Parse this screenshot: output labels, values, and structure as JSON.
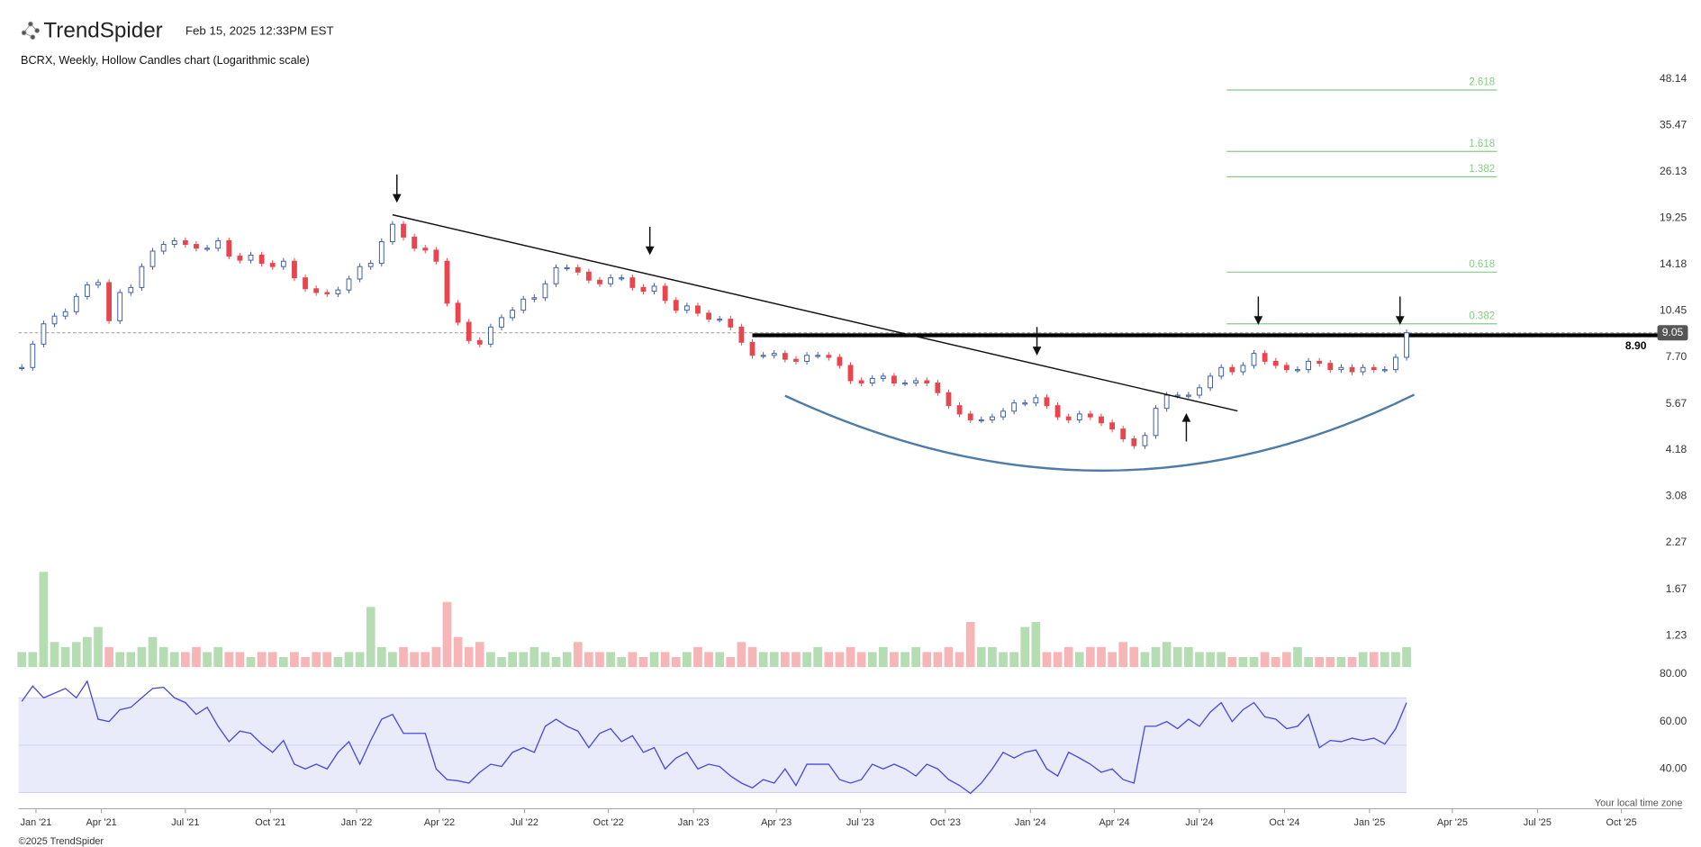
{
  "header": {
    "brand": "TrendSpider",
    "timestamp": "Feb 15, 2025 12:33PM EST"
  },
  "footer": {
    "copyright": "©2025 TrendSpider",
    "timezone_note": "Your local time zone"
  },
  "chart_data": {
    "type": "candlestick",
    "title": "BCRX, Weekly, Hollow Candles chart (Logarithmic scale)",
    "log_scale": true,
    "x": [
      0,
      1,
      2,
      3,
      4,
      5,
      6,
      7,
      8,
      9,
      10,
      11,
      12,
      13,
      14,
      15,
      16,
      17,
      18,
      19,
      20,
      21,
      22,
      23,
      24,
      25,
      26,
      27,
      28,
      29,
      30,
      31,
      32,
      33,
      34,
      35,
      36,
      37,
      38,
      39,
      40,
      41,
      42,
      43,
      44,
      45,
      46,
      47,
      48,
      49,
      50,
      51,
      52,
      53,
      54,
      55,
      56,
      57,
      58,
      59,
      60,
      61,
      62,
      63,
      64,
      65,
      66,
      67,
      68,
      69,
      70,
      71,
      72,
      73,
      74,
      75,
      76,
      77,
      78,
      79,
      80,
      81,
      82,
      83,
      84,
      85,
      86,
      87,
      88,
      89,
      90,
      91,
      92,
      93,
      94,
      95,
      96,
      97,
      98,
      99,
      100,
      101,
      102,
      103,
      104,
      105,
      106,
      107,
      108,
      109,
      110,
      111,
      112,
      113,
      114,
      115,
      116,
      117,
      118,
      119,
      120,
      121,
      122,
      123,
      124,
      125,
      126,
      127
    ],
    "xlim": [
      -0.3,
      152.3
    ],
    "xticks": [
      {
        "value": 1.3,
        "label": "Jan '21"
      },
      {
        "value": 7.3,
        "label": "Apr '21"
      },
      {
        "value": 15,
        "label": "Jul '21"
      },
      {
        "value": 22.8,
        "label": "Oct '21"
      },
      {
        "value": 30.7,
        "label": "Jan '22"
      },
      {
        "value": 38.3,
        "label": "Apr '22"
      },
      {
        "value": 46.1,
        "label": "Jul '22"
      },
      {
        "value": 53.8,
        "label": "Oct '22"
      },
      {
        "value": 61.6,
        "label": "Jan '23"
      },
      {
        "value": 69.2,
        "label": "Apr '23"
      },
      {
        "value": 76.9,
        "label": "Jul '23"
      },
      {
        "value": 84.7,
        "label": "Oct '23"
      },
      {
        "value": 92.5,
        "label": "Jan '24"
      },
      {
        "value": 100.2,
        "label": "Apr '24"
      },
      {
        "value": 108,
        "label": "Jul '24"
      },
      {
        "value": 115.8,
        "label": "Oct '24"
      },
      {
        "value": 123.6,
        "label": "Jan '25"
      },
      {
        "value": 131.2,
        "label": "Apr '25"
      },
      {
        "value": 139,
        "label": "Jul '25"
      },
      {
        "value": 146.7,
        "label": "Oct '25"
      }
    ],
    "price": {
      "ylim": [
        1.0,
        55
      ],
      "yticks": [
        48.14,
        35.47,
        26.13,
        19.25,
        14.18,
        10.45,
        {
          "value": 7.7,
          "label": "7.70"
        },
        5.67,
        4.18,
        3.08,
        2.27,
        1.67,
        1.23
      ],
      "up_color": "#3b5ba8",
      "down_color": "#e8464e",
      "values": [
        7.2,
        8.4,
        9.6,
        10.1,
        10.4,
        11.5,
        12.4,
        12.6,
        9.8,
        11.8,
        12.2,
        14.0,
        15.5,
        16.2,
        16.6,
        16.2,
        15.8,
        15.8,
        16.6,
        15.0,
        14.6,
        15.1,
        14.3,
        14.0,
        14.5,
        13.0,
        12.1,
        11.8,
        11.7,
        12.0,
        12.9,
        14.0,
        14.3,
        16.5,
        18.5,
        17.0,
        15.8,
        15.6,
        14.5,
        11.0,
        9.7,
        8.6,
        8.4,
        9.4,
        10.0,
        10.5,
        11.3,
        11.4,
        12.5,
        13.9,
        13.9,
        13.5,
        12.8,
        12.5,
        13.0,
        13.0,
        12.2,
        11.9,
        12.3,
        11.2,
        10.5,
        10.8,
        10.3,
        9.9,
        9.9,
        9.4,
        8.5,
        7.8,
        7.8,
        7.9,
        7.6,
        7.5,
        7.8,
        7.8,
        7.7,
        7.3,
        6.6,
        6.5,
        6.7,
        6.8,
        6.5,
        6.5,
        6.6,
        6.5,
        6.1,
        5.6,
        5.3,
        5.1,
        5.1,
        5.2,
        5.4,
        5.7,
        5.7,
        5.9,
        5.6,
        5.2,
        5.1,
        5.3,
        5.2,
        5.0,
        4.8,
        4.5,
        4.3,
        4.6,
        5.5,
        6.0,
        6.0,
        6.0,
        6.3,
        6.8,
        7.2,
        7.0,
        7.3,
        7.9,
        7.5,
        7.3,
        7.1,
        7.1,
        7.5,
        7.4,
        7.1,
        7.2,
        7.0,
        7.2,
        7.1,
        7.1,
        7.7,
        9.05
      ]
    },
    "resistance": {
      "value": 8.9,
      "label": "8.90"
    },
    "fib": [
      {
        "ratio": 2.618,
        "price": 44.8
      },
      {
        "ratio": 1.618,
        "price": 29.9
      },
      {
        "ratio": 1.382,
        "price": 25.3
      },
      {
        "ratio": 0.618,
        "price": 13.5
      },
      {
        "ratio": 0.382,
        "price": 9.6
      }
    ],
    "fib_color": "#86cc86",
    "volume": {
      "ylim": [
        0,
        20
      ],
      "up_color": "#b5dcb3",
      "down_color": "#f6b6b8",
      "values": [
        3,
        3,
        19,
        5,
        4,
        5,
        6,
        8,
        4,
        3,
        3,
        4,
        6,
        4,
        3,
        3,
        4,
        3,
        4,
        3,
        3,
        2,
        3,
        3,
        2,
        3,
        2,
        3,
        3,
        2,
        3,
        3,
        12,
        4,
        3,
        4,
        3,
        3,
        4,
        13,
        6,
        4,
        5,
        3,
        2,
        3,
        3,
        4,
        3,
        2,
        3,
        5,
        3,
        3,
        3,
        2,
        3,
        2,
        3,
        3,
        2,
        3,
        4,
        3,
        3,
        2,
        5,
        4,
        3,
        3,
        3,
        3,
        3,
        4,
        3,
        3,
        4,
        3,
        3,
        4,
        3,
        3,
        4,
        3,
        3,
        4,
        3,
        9,
        4,
        4,
        3,
        3,
        8,
        9,
        3,
        3,
        4,
        3,
        4,
        4,
        3,
        5,
        4,
        3,
        4,
        5,
        4,
        4,
        3,
        3,
        3,
        2,
        2,
        2,
        3,
        2,
        3,
        4,
        2,
        2,
        2,
        2,
        2,
        3,
        3,
        3,
        3,
        4
      ]
    },
    "rsi": {
      "ylim": [
        25,
        83
      ],
      "yticks": [
        {
          "value": 80,
          "label": "80.00"
        },
        {
          "value": 60,
          "label": "60.00"
        },
        {
          "value": 40,
          "label": "40.00"
        }
      ],
      "band": [
        30,
        70
      ],
      "color": "#4a4ad4",
      "band_color": "#e9ebfa",
      "values": [
        68.5,
        75,
        70,
        72,
        74,
        70,
        77,
        61,
        60,
        65,
        66,
        70,
        74,
        74.5,
        70,
        68,
        63,
        66,
        58,
        51.5,
        56,
        55,
        50.5,
        47,
        52,
        42,
        40,
        42,
        40,
        47,
        51.5,
        42,
        52,
        61,
        63,
        55,
        55,
        55,
        40,
        35.5,
        35,
        34,
        38.6,
        42,
        41,
        47,
        49,
        47,
        58,
        61,
        58,
        56,
        49,
        55,
        57,
        51.5,
        54,
        47,
        49,
        40,
        44.6,
        47,
        40,
        42,
        41,
        37,
        34,
        32,
        35.5,
        34,
        40,
        33,
        42,
        42,
        42,
        35.5,
        34,
        35.5,
        42,
        40,
        42,
        40,
        37,
        42,
        40,
        35.5,
        33,
        29.7,
        34,
        40,
        47,
        44.6,
        47,
        48,
        40,
        37,
        47,
        44.6,
        42,
        38.6,
        40,
        35.5,
        34,
        58,
        58,
        60,
        57,
        61,
        58,
        64,
        68,
        60,
        65,
        68,
        62,
        61,
        57,
        58,
        63,
        49,
        52,
        51.5,
        53,
        52,
        53,
        50.5,
        57,
        68
      ]
    }
  }
}
